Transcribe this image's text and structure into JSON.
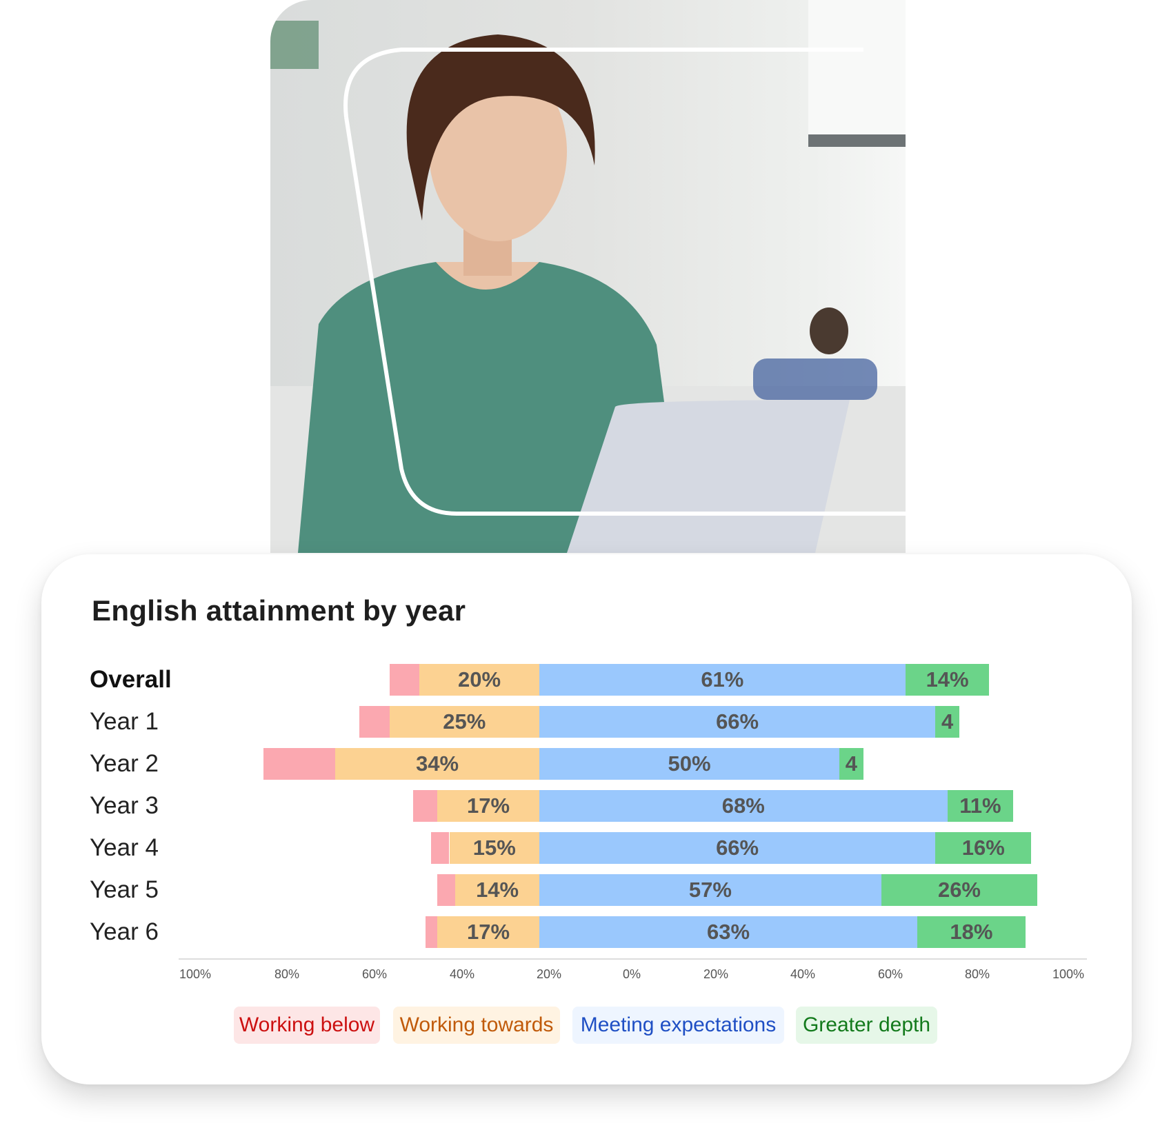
{
  "photo": {
    "description_icon": "teacher-with-laptop-photo"
  },
  "chart_data": {
    "type": "bar",
    "orientation": "horizontal-diverging-stacked",
    "title": "English attainment by year",
    "categories": [
      "Overall",
      "Year 1",
      "Year 2",
      "Year 3",
      "Year 4",
      "Year 5",
      "Year 6"
    ],
    "series": [
      {
        "name": "Working below",
        "color": "#fba8b0",
        "values": [
          5,
          5,
          12,
          4,
          3,
          3,
          2
        ],
        "labels": [
          "",
          "",
          "",
          "",
          "",
          "",
          ""
        ]
      },
      {
        "name": "Working towards",
        "color": "#fcd292",
        "values": [
          20,
          25,
          34,
          17,
          15,
          14,
          17
        ],
        "labels": [
          "20%",
          "25%",
          "34%",
          "17%",
          "15%",
          "14%",
          "17%"
        ]
      },
      {
        "name": "Meeting expectations",
        "color": "#9ac8fd",
        "values": [
          61,
          66,
          50,
          68,
          66,
          57,
          63
        ],
        "labels": [
          "61%",
          "66%",
          "50%",
          "68%",
          "66%",
          "57%",
          "63%"
        ]
      },
      {
        "name": "Greater depth",
        "color": "#6bd489",
        "values": [
          14,
          4,
          4,
          11,
          16,
          26,
          18
        ],
        "labels": [
          "14%",
          "4",
          "4",
          "11%",
          "16%",
          "26%",
          "18%"
        ]
      }
    ],
    "x_ticks": [
      "100%",
      "80%",
      "60%",
      "40%",
      "20%",
      "0%",
      "20%",
      "40%",
      "60%",
      "80%",
      "100%"
    ],
    "xlim": [
      -100,
      100
    ],
    "grid": false,
    "legend_position": "bottom",
    "legend": [
      {
        "label": "Working below",
        "text_color": "#cc1010",
        "bg": "#fde6e6"
      },
      {
        "label": "Working towards",
        "text_color": "#c05a0a",
        "bg": "#fff3e2"
      },
      {
        "label": "Meeting expectations",
        "text_color": "#1f4fc4",
        "bg": "#eef5ff"
      },
      {
        "label": "Greater depth",
        "text_color": "#137a1c",
        "bg": "#e6f7e8"
      }
    ]
  }
}
